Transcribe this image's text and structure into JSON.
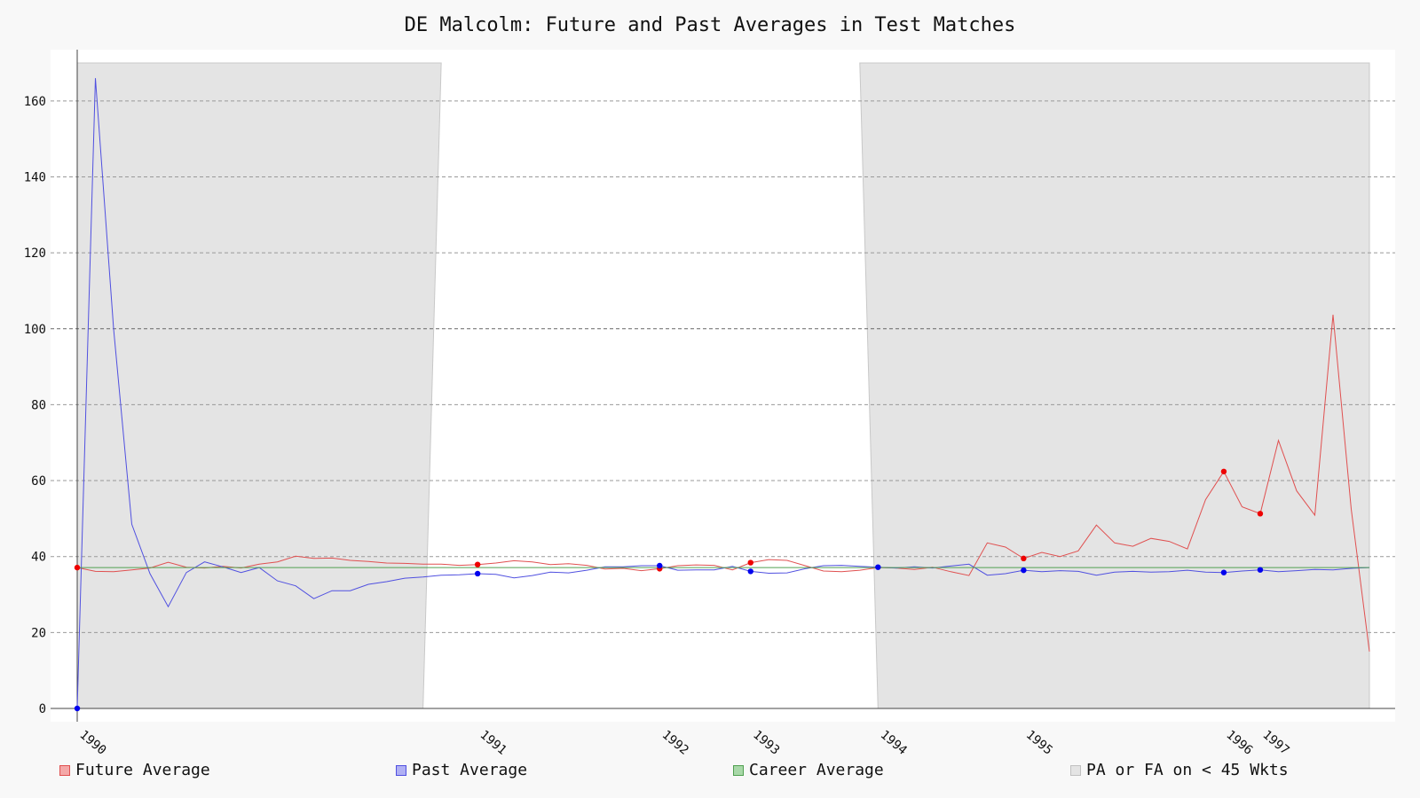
{
  "chart_data": {
    "type": "line",
    "title": "DE Malcolm: Future and Past Averages in Test Matches",
    "xlabel": "",
    "ylabel": "",
    "ylim": [
      0,
      170
    ],
    "yticks": [
      0,
      20,
      40,
      60,
      80,
      100,
      120,
      140,
      160
    ],
    "grid": true,
    "legend_position": "bottom",
    "x_ticks": [
      {
        "index": 0,
        "label": "1990"
      },
      {
        "index": 22,
        "label": "1991"
      },
      {
        "index": 32,
        "label": "1992"
      },
      {
        "index": 37,
        "label": "1993"
      },
      {
        "index": 44,
        "label": "1994"
      },
      {
        "index": 52,
        "label": "1995"
      },
      {
        "index": 63,
        "label": "1996"
      },
      {
        "index": 65,
        "label": "1997"
      }
    ],
    "series": [
      {
        "name": "Future Average",
        "color": "#e05050",
        "marker_color": "#ee0000",
        "markers": [
          0,
          22,
          32,
          37,
          52,
          63,
          65
        ],
        "values": [
          37.1,
          36.1,
          36.0,
          36.5,
          37.0,
          38.5,
          37.2,
          37.0,
          37.4,
          37.0,
          38.0,
          38.6,
          40.1,
          39.5,
          39.6,
          39.0,
          38.7,
          38.3,
          38.2,
          38.0,
          38.0,
          37.7,
          37.9,
          38.3,
          38.9,
          38.6,
          37.9,
          38.1,
          37.7,
          36.7,
          36.9,
          36.3,
          36.8,
          37.6,
          37.8,
          37.7,
          36.5,
          38.4,
          39.2,
          39.0,
          37.6,
          36.2,
          36.0,
          36.4,
          37.1,
          37.0,
          36.6,
          37.2,
          36.0,
          35.0,
          43.6,
          42.5,
          39.5,
          41.1,
          40.0,
          41.5,
          48.3,
          43.6,
          42.7,
          44.8,
          44.0,
          42.0,
          55.0,
          62.4,
          53.1,
          51.3,
          70.6,
          57.3,
          50.9,
          103.7,
          52.5,
          15.0
        ]
      },
      {
        "name": "Past Average",
        "color": "#5050e0",
        "marker_color": "#0000ee",
        "markers": [
          0,
          22,
          32,
          37,
          44,
          52,
          63,
          65
        ],
        "values": [
          0.0,
          166.0,
          100.0,
          48.5,
          35.5,
          26.8,
          35.8,
          38.6,
          37.3,
          35.8,
          37.1,
          33.6,
          32.3,
          28.9,
          31.0,
          31.0,
          32.7,
          33.4,
          34.3,
          34.6,
          35.1,
          35.2,
          35.5,
          35.3,
          34.4,
          35.0,
          35.9,
          35.7,
          36.4,
          37.3,
          37.3,
          37.6,
          37.6,
          36.4,
          36.5,
          36.5,
          37.4,
          36.1,
          35.6,
          35.7,
          36.8,
          37.6,
          37.7,
          37.4,
          37.2,
          37.0,
          37.3,
          37.0,
          37.5,
          38.0,
          35.1,
          35.5,
          36.4,
          36.0,
          36.3,
          36.1,
          35.1,
          35.9,
          36.1,
          35.9,
          36.0,
          36.4,
          35.9,
          35.8,
          36.2,
          36.5,
          36.0,
          36.3,
          36.6,
          36.5,
          36.9,
          37.1
        ]
      },
      {
        "name": "Career Average",
        "color": "#50a050",
        "values": [
          37.1,
          37.1
        ]
      }
    ],
    "shaded_regions": {
      "name": "PA or FA on < 45 Wkts",
      "color": "#e4e4e4",
      "top": 170,
      "ranges": [
        [
          0,
          19
        ],
        [
          44,
          71
        ]
      ]
    },
    "legend": [
      {
        "label": "Future Average",
        "fill": "#f4a8a8",
        "border": "#e05050"
      },
      {
        "label": "Past Average",
        "fill": "#b0b0f4",
        "border": "#5050e0"
      },
      {
        "label": "Career Average",
        "fill": "#a8d8a8",
        "border": "#50a050"
      },
      {
        "label": "PA or FA on < 45 Wkts",
        "fill": "#e4e4e4",
        "border": "#c0c0c0"
      }
    ]
  }
}
